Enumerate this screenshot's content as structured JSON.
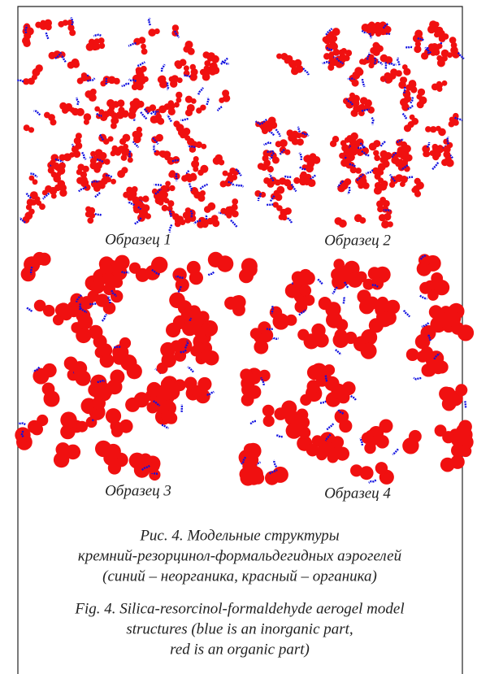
{
  "panels": [
    {
      "label": "Образец 1"
    },
    {
      "label": "Образец 2"
    },
    {
      "label": "Образец 3"
    },
    {
      "label": "Образец 4"
    }
  ],
  "caption": {
    "ru": [
      "Рис. 4. Модельные структуры",
      "кремний-резорцинол-формальдегидных аэрогелей",
      "(синий – неорганика, красный – органика)"
    ],
    "en": [
      "Fig. 4. Silica-resorcinol-formaldehyde aerogel model",
      "structures (blue is an inorganic part,",
      "red is an organic part)"
    ]
  }
}
